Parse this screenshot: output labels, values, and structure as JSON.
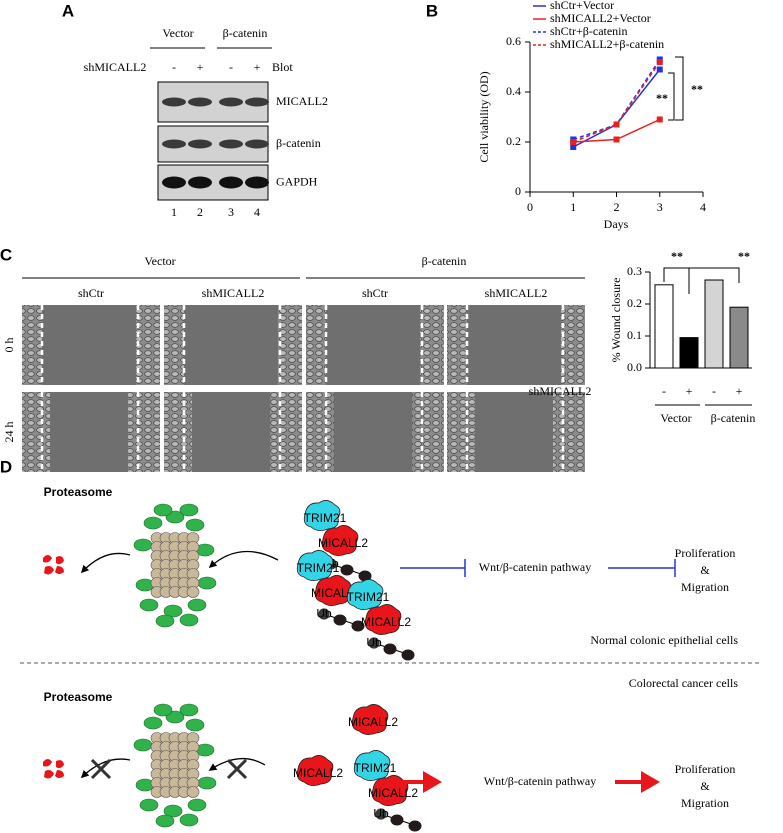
{
  "panel_labels": [
    "A",
    "B",
    "C",
    "D"
  ],
  "panel_a": {
    "groups": [
      "Vector",
      "β-catenin"
    ],
    "row_label": "shMICALL2",
    "lane_signs": [
      "-",
      "+",
      "-",
      "+"
    ],
    "blot_label": "Blot",
    "bands": [
      "MICALL2",
      "β-catenin",
      "GAPDH"
    ],
    "lanes": [
      "1",
      "2",
      "3",
      "4"
    ]
  },
  "panel_c": {
    "groups": [
      "Vector",
      "β-catenin"
    ],
    "conditions": [
      "shCtr",
      "shMICALL2",
      "shCtr",
      "shMICALL2"
    ],
    "times": [
      "0 h",
      "24 h"
    ]
  },
  "chart_data": [
    {
      "type": "line",
      "x_label": "Days",
      "y_label": "Cell viability (OD)",
      "x": [
        1,
        2,
        3
      ],
      "xlim": [
        0,
        4
      ],
      "xticks": [
        0,
        1,
        2,
        3,
        4
      ],
      "ylim": [
        0,
        0.6
      ],
      "yticks": [
        0,
        0.2,
        0.4,
        0.6
      ],
      "series": [
        {
          "name": "shCtr+Vector",
          "color": "#2233dd",
          "dashed": false,
          "values": [
            0.18,
            0.27,
            0.49
          ]
        },
        {
          "name": "shMICALL2+Vector",
          "color": "#e52222",
          "dashed": false,
          "values": [
            0.2,
            0.21,
            0.29
          ]
        },
        {
          "name": "shCtr+β-catenin",
          "color": "#2233dd",
          "dashed": true,
          "values": [
            0.21,
            0.27,
            0.53
          ]
        },
        {
          "name": "shMICALL2+β-catenin",
          "color": "#e52222",
          "dashed": true,
          "values": [
            0.2,
            0.27,
            0.52
          ]
        }
      ],
      "annotations": [
        "**",
        "**"
      ]
    },
    {
      "type": "bar",
      "y_label": "% Wound closure",
      "categories": [
        "-",
        "+",
        "-",
        "+"
      ],
      "row_label": "shMICALL2",
      "groups": [
        "Vector",
        "β-catenin"
      ],
      "values": [
        0.26,
        0.095,
        0.275,
        0.19
      ],
      "colors": [
        "#ffffff",
        "#000000",
        "#d4d4d4",
        "#8a8a8a"
      ],
      "ylim": [
        0,
        0.3
      ],
      "yticks": [
        {
          "value": 0,
          "label": "0.0"
        },
        0.1,
        0.2,
        0.3
      ],
      "annotations": [
        "**",
        "**"
      ]
    }
  ],
  "panel_d": {
    "proteasome": "Proteasome",
    "trim21": "TRIM21",
    "micall2": "MICALL2",
    "ub": "Ub",
    "pathway": "Wnt/β-catenin pathway",
    "outcome": [
      "Proliferation",
      "&",
      "Migration"
    ],
    "normal": "Normal colonic epithelial cells",
    "cancer": "Colorectal cancer cells"
  }
}
